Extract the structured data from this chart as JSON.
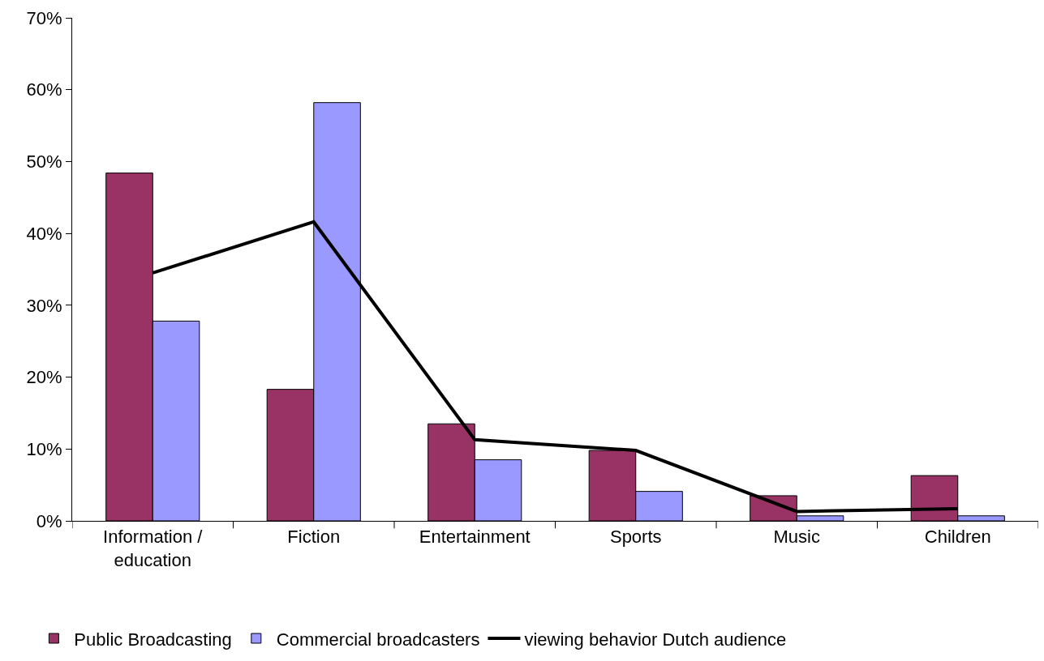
{
  "chart_data": {
    "type": "bar",
    "categories": [
      "Information / education",
      "Fiction",
      "Entertainment",
      "Sports",
      "Music",
      "Children"
    ],
    "series": [
      {
        "name": "Public Broadcasting",
        "color": "#993366",
        "values": [
          48.4,
          18.3,
          13.5,
          9.8,
          3.5,
          6.3
        ]
      },
      {
        "name": "Commercial broadcasters",
        "color": "#9999ff",
        "values": [
          27.8,
          58.2,
          8.5,
          4.1,
          0.7,
          0.7
        ]
      },
      {
        "name": "viewing behavior Dutch audience",
        "type": "line",
        "color": "#000000",
        "values": [
          34.5,
          41.6,
          11.3,
          9.8,
          1.3,
          1.7
        ]
      }
    ],
    "ylim": [
      0,
      70
    ],
    "yticks": [
      {
        "value": 0,
        "label": "0%"
      },
      {
        "value": 10,
        "label": "10%"
      },
      {
        "value": 20,
        "label": "20%"
      },
      {
        "value": 30,
        "label": "30%"
      },
      {
        "value": 40,
        "label": "40%"
      },
      {
        "value": 50,
        "label": "50%"
      },
      {
        "value": 60,
        "label": "60%"
      },
      {
        "value": 70,
        "label": "70%"
      }
    ],
    "grid": false,
    "legend": "bottom",
    "marker": "none",
    "line_style": "solid"
  }
}
